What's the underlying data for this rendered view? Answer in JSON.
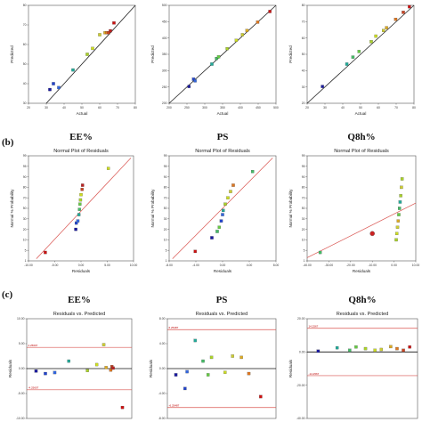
{
  "colors": {
    "red_line": "#d9534f",
    "black_line": "#222222"
  },
  "section_labels": [
    "(b)",
    "(c)"
  ],
  "chart_data": [
    {
      "id": "a1",
      "type": "scatter",
      "xlabel": "Actual",
      "ylabel": "Predicted",
      "xticks": [
        "20",
        "30",
        "40",
        "50",
        "60",
        "70",
        "80"
      ],
      "yticks": [
        "30",
        "40",
        "50",
        "60",
        "70",
        "80"
      ],
      "xlim": [
        20,
        80
      ],
      "ylim": [
        30,
        80
      ],
      "points": [
        [
          32,
          37,
          "#1a1aa0"
        ],
        [
          34,
          40,
          "#2244cc"
        ],
        [
          37,
          38,
          "#3366dd"
        ],
        [
          45,
          47,
          "#22aa99"
        ],
        [
          53,
          55,
          "#aad22a"
        ],
        [
          56,
          58,
          "#ccdd22"
        ],
        [
          60,
          65,
          "#cccc33"
        ],
        [
          63,
          66,
          "#ddaa22"
        ],
        [
          64,
          66,
          "#dd7722"
        ],
        [
          65,
          66,
          "#cc4422"
        ],
        [
          66,
          67,
          "#bb2222"
        ],
        [
          68,
          71,
          "#cc1111"
        ]
      ]
    },
    {
      "id": "a2",
      "type": "scatter",
      "xlabel": "Actual",
      "ylabel": "Predicted",
      "xticks": [
        "200",
        "250",
        "300",
        "350",
        "400",
        "450",
        "500"
      ],
      "yticks": [
        "200",
        "250",
        "300",
        "350",
        "400",
        "450",
        "500"
      ],
      "xlim": [
        150,
        500
      ],
      "ylim": [
        150,
        500
      ],
      "points": [
        [
          215,
          210,
          "#1a1aa0"
        ],
        [
          230,
          236,
          "#2244cc"
        ],
        [
          235,
          230,
          "#3366dd"
        ],
        [
          290,
          290,
          "#22aa99"
        ],
        [
          305,
          310,
          "#44bb66"
        ],
        [
          312,
          316,
          "#66cc44"
        ],
        [
          340,
          345,
          "#aad22a"
        ],
        [
          370,
          375,
          "#ccdd22"
        ],
        [
          390,
          395,
          "#cccc33"
        ],
        [
          405,
          410,
          "#ddaa22"
        ],
        [
          440,
          440,
          "#dd7722"
        ],
        [
          480,
          478,
          "#cc1111"
        ]
      ]
    },
    {
      "id": "a3",
      "type": "scatter",
      "xlabel": "Actual",
      "ylabel": "Predicted",
      "xticks": [
        "20",
        "30",
        "40",
        "50",
        "60",
        "70",
        "80"
      ],
      "yticks": [
        "20",
        "30",
        "40",
        "50",
        "60",
        "70",
        "80"
      ],
      "xlim": [
        10,
        80
      ],
      "ylim": [
        10,
        80
      ],
      "points": [
        [
          20,
          22,
          "#1a1aa0"
        ],
        [
          36,
          38,
          "#22aa99"
        ],
        [
          40,
          43,
          "#44bb66"
        ],
        [
          44,
          47,
          "#66cc44"
        ],
        [
          52,
          54,
          "#aad22a"
        ],
        [
          55,
          58,
          "#ccdd22"
        ],
        [
          60,
          62,
          "#cccc33"
        ],
        [
          62,
          64,
          "#ddaa22"
        ],
        [
          68,
          70,
          "#dd7722"
        ],
        [
          73,
          75,
          "#cc4422"
        ],
        [
          77,
          79,
          "#cc1111"
        ]
      ]
    },
    {
      "id": "b1",
      "type": "scatter",
      "title": "EE%",
      "subtitle": "Normal Plot of Residuals",
      "xlabel": "Residuals",
      "ylabel": "Normal % Probability",
      "xticks": [
        "-10.00",
        "-5.00",
        "0.00",
        "5.00",
        "10.00"
      ],
      "yticks": [
        "1",
        "5",
        "10",
        "20",
        "30",
        "50",
        "70",
        "80",
        "90",
        "95",
        "99"
      ],
      "xlim": [
        -10,
        10
      ],
      "ylim": [
        0,
        100
      ],
      "points": [
        [
          -6.8,
          8,
          "#cc1111"
        ],
        [
          -1.0,
          30,
          "#1a1aa0"
        ],
        [
          -0.9,
          36,
          "#2244cc"
        ],
        [
          -0.6,
          38,
          "#3366dd"
        ],
        [
          -0.4,
          44,
          "#22aa99"
        ],
        [
          -0.3,
          49,
          "#44bb66"
        ],
        [
          -0.2,
          54,
          "#66cc44"
        ],
        [
          -0.1,
          58,
          "#aad22a"
        ],
        [
          0.0,
          63,
          "#ccdd22"
        ],
        [
          0.2,
          68,
          "#cc4422"
        ],
        [
          0.3,
          72,
          "#bb2222"
        ],
        [
          5.2,
          88,
          "#ccdd22"
        ]
      ]
    },
    {
      "id": "b2",
      "type": "scatter",
      "title": "PS",
      "subtitle": "Normal Plot of Residuals",
      "xlabel": "Residuals",
      "ylabel": "Normal % Probability",
      "xticks": [
        "-8.00",
        "-4.00",
        "0.00",
        "4.00",
        "8.00"
      ],
      "yticks": [
        "1",
        "5",
        "10",
        "20",
        "30",
        "50",
        "70",
        "80",
        "90",
        "95",
        "99"
      ],
      "xlim": [
        -8,
        8
      ],
      "ylim": [
        0,
        100
      ],
      "points": [
        [
          -4.1,
          9,
          "#cc1111"
        ],
        [
          -1.6,
          22,
          "#1a1aa0"
        ],
        [
          -0.8,
          28,
          "#44bb66"
        ],
        [
          -0.5,
          32,
          "#66cc44"
        ],
        [
          -0.2,
          38,
          "#2244cc"
        ],
        [
          0.0,
          44,
          "#3366dd"
        ],
        [
          0.1,
          48,
          "#22aa99"
        ],
        [
          0.4,
          54,
          "#aad22a"
        ],
        [
          0.8,
          60,
          "#ccdd22"
        ],
        [
          1.2,
          66,
          "#cccc33"
        ],
        [
          1.6,
          72,
          "#dd7722"
        ],
        [
          4.5,
          85,
          "#44bb66"
        ]
      ]
    },
    {
      "id": "b3",
      "type": "scatter",
      "title": "Q8h%",
      "subtitle": "Normal Plot of Residuals",
      "xlabel": "Residuals",
      "ylabel": "Normal % Probability",
      "xticks": [
        "-40.00",
        "-30.00",
        "-20.00",
        "-10.00",
        "0.00",
        "10.00"
      ],
      "yticks": [
        "1",
        "5",
        "10",
        "20",
        "30",
        "50",
        "70",
        "80",
        "90",
        "95",
        "99"
      ],
      "xlim": [
        -40,
        10
      ],
      "ylim": [
        0,
        100
      ],
      "points": [
        [
          -34,
          8,
          "#44bb66"
        ],
        [
          -10,
          26,
          "#cc1111"
        ],
        [
          1,
          20,
          "#aad22a"
        ],
        [
          1.3,
          26,
          "#ccdd22"
        ],
        [
          1.6,
          32,
          "#cccc33"
        ],
        [
          1.9,
          38,
          "#ddaa22"
        ],
        [
          2.2,
          44,
          "#66cc44"
        ],
        [
          2.5,
          50,
          "#44bb66"
        ],
        [
          2.8,
          56,
          "#22aa99"
        ],
        [
          3.1,
          62,
          "#aad22a"
        ],
        [
          3.4,
          70,
          "#cccc33"
        ],
        [
          3.7,
          78,
          "#aad22a"
        ]
      ]
    },
    {
      "id": "c1",
      "type": "scatter",
      "title": "EE%",
      "subtitle": "Residuals vs. Predicted",
      "xlabel": "",
      "ylabel": "Residuals",
      "yticks": [
        "-10.00",
        "-5.00",
        "0.00",
        "5.00",
        "10.00"
      ],
      "limit_labels": [
        "4.25607",
        "-4.25607"
      ],
      "xlim": [
        30,
        75
      ],
      "ylim": [
        -10,
        10
      ],
      "limits": [
        4.256,
        -4.256
      ],
      "points": [
        [
          34,
          -0.5,
          "#1a1aa0"
        ],
        [
          38,
          -1.0,
          "#2244cc"
        ],
        [
          42,
          -0.8,
          "#3366dd"
        ],
        [
          48,
          1.5,
          "#22aa99"
        ],
        [
          56,
          -0.4,
          "#aad22a"
        ],
        [
          60,
          0.8,
          "#ccdd22"
        ],
        [
          63,
          4.8,
          "#cccc33"
        ],
        [
          64,
          0.2,
          "#ddaa22"
        ],
        [
          66,
          -0.3,
          "#dd7722"
        ],
        [
          66.5,
          0.4,
          "#cc4422"
        ],
        [
          67,
          0.1,
          "#bb2222"
        ],
        [
          71,
          -7.8,
          "#cc1111"
        ]
      ]
    },
    {
      "id": "c2",
      "type": "scatter",
      "title": "PS",
      "subtitle": "Residuals vs. Predicted",
      "xlabel": "",
      "ylabel": "Residuals",
      "yticks": [
        "-8.00",
        "-4.00",
        "0.00",
        "4.00",
        "8.00"
      ],
      "limit_labels": [
        "6.25487",
        "-6.25487"
      ],
      "xlim": [
        180,
        500
      ],
      "ylim": [
        -8,
        8
      ],
      "limits": [
        6.255,
        -6.255
      ],
      "points": [
        [
          205,
          -1.0,
          "#1a1aa0"
        ],
        [
          232,
          -3.2,
          "#2244cc"
        ],
        [
          238,
          -0.5,
          "#3366dd"
        ],
        [
          262,
          4.5,
          "#22aa99"
        ],
        [
          285,
          1.2,
          "#44bb66"
        ],
        [
          300,
          -1.0,
          "#66cc44"
        ],
        [
          310,
          1.8,
          "#aad22a"
        ],
        [
          350,
          -0.6,
          "#ccdd22"
        ],
        [
          372,
          2.0,
          "#cccc33"
        ],
        [
          398,
          1.8,
          "#ddaa22"
        ],
        [
          420,
          -0.8,
          "#dd7722"
        ],
        [
          455,
          -4.5,
          "#cc1111"
        ]
      ]
    },
    {
      "id": "c3",
      "type": "scatter",
      "title": "Q8h%",
      "subtitle": "Residuals vs. Predicted",
      "xlabel": "",
      "ylabel": "Residuals",
      "yticks": [
        "-40.00",
        "-20.00",
        "0.00",
        "20.00"
      ],
      "limit_labels": [
        "14.2567",
        "-14.2567"
      ],
      "xlim": [
        15,
        85
      ],
      "ylim": [
        -40,
        20
      ],
      "limits": [
        14.26,
        -14.26
      ],
      "points": [
        [
          22,
          0.5,
          "#1a1aa0"
        ],
        [
          34,
          2.5,
          "#22aa99"
        ],
        [
          42,
          1.0,
          "#44bb66"
        ],
        [
          46,
          3.0,
          "#66cc44"
        ],
        [
          52,
          2.0,
          "#aad22a"
        ],
        [
          58,
          1.0,
          "#ccdd22"
        ],
        [
          62,
          1.5,
          "#cccc33"
        ],
        [
          68,
          3.2,
          "#ddaa22"
        ],
        [
          72,
          2.0,
          "#dd7722"
        ],
        [
          76,
          1.0,
          "#cc4422"
        ],
        [
          80,
          3.0,
          "#cc1111"
        ]
      ]
    }
  ]
}
